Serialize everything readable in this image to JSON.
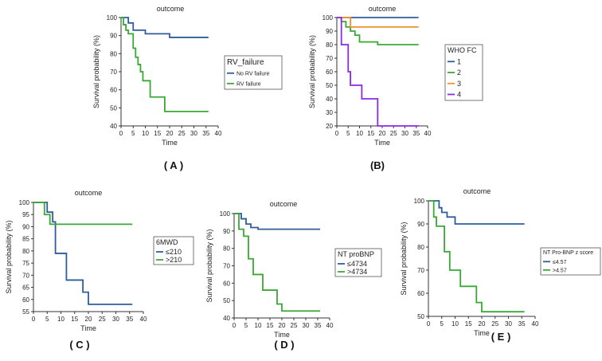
{
  "colors": {
    "blue": "#2f5d9b",
    "green": "#39a935",
    "orange": "#f0922c",
    "purple": "#8a2be2",
    "axis": "#333333"
  },
  "chart_data": [
    {
      "id": "A",
      "type": "line",
      "panel_label": "( A )",
      "title": "outcome",
      "xlabel": "Time",
      "ylabel": "Survival probability (%)",
      "xlim": [
        0,
        40
      ],
      "ylim": [
        40,
        100
      ],
      "xticks": [
        "0",
        "5",
        "10",
        "15",
        "20",
        "25",
        "30",
        "35",
        "40"
      ],
      "yticks": [
        "40",
        "50",
        "60",
        "70",
        "80",
        "90",
        "100"
      ],
      "legend_title": "RV_failure",
      "legend_position": "right",
      "series": [
        {
          "name": "No RV failure",
          "color": "blue",
          "x": [
            0,
            3,
            5,
            10,
            20,
            36
          ],
          "y": [
            100,
            97,
            93,
            91,
            89,
            89
          ]
        },
        {
          "name": "RV failure",
          "color": "green",
          "x": [
            0,
            1,
            2,
            3,
            5,
            6,
            7,
            8,
            9,
            12,
            18,
            36
          ],
          "y": [
            100,
            96,
            93,
            91,
            83,
            78,
            74,
            70,
            65,
            56,
            48,
            48
          ]
        }
      ]
    },
    {
      "id": "B",
      "type": "line",
      "panel_label": "(B)",
      "title": "outcome",
      "xlabel": "Time",
      "ylabel": "Survival probability (%)",
      "xlim": [
        0,
        40
      ],
      "ylim": [
        20,
        100
      ],
      "xticks": [
        "0",
        "5",
        "10",
        "15",
        "20",
        "25",
        "30",
        "35",
        "40"
      ],
      "yticks": [
        "20",
        "30",
        "40",
        "50",
        "60",
        "70",
        "80",
        "90",
        "100"
      ],
      "legend_title": "WHO FC",
      "legend_position": "right",
      "series": [
        {
          "name": "1",
          "color": "blue",
          "x": [
            0,
            36
          ],
          "y": [
            100,
            100
          ]
        },
        {
          "name": "2",
          "color": "green",
          "x": [
            0,
            2,
            4,
            6,
            8,
            10,
            18,
            36
          ],
          "y": [
            100,
            97,
            93,
            90,
            87,
            82,
            80,
            80
          ]
        },
        {
          "name": "3",
          "color": "orange",
          "x": [
            0,
            6,
            36
          ],
          "y": [
            100,
            93,
            93
          ]
        },
        {
          "name": "4",
          "color": "purple",
          "x": [
            0,
            2,
            5,
            6,
            11,
            18,
            36
          ],
          "y": [
            100,
            80,
            60,
            50,
            40,
            20,
            20
          ]
        }
      ]
    },
    {
      "id": "C",
      "type": "line",
      "panel_label": "( C )",
      "title": "outcome",
      "xlabel": "Time",
      "ylabel": "Survival probability (%)",
      "xlim": [
        0,
        40
      ],
      "ylim": [
        55,
        100
      ],
      "xticks": [
        "0",
        "5",
        "10",
        "15",
        "20",
        "25",
        "30",
        "35",
        "40"
      ],
      "yticks": [
        "55",
        "60",
        "65",
        "70",
        "75",
        "80",
        "85",
        "90",
        "95",
        "100"
      ],
      "legend_title": "6MWD",
      "legend_position": "right",
      "series": [
        {
          "name": "≤210",
          "color": "blue",
          "x": [
            0,
            5,
            7,
            8,
            12,
            18,
            20,
            36
          ],
          "y": [
            100,
            96,
            92,
            79,
            68,
            63,
            58,
            58
          ]
        },
        {
          "name": ">210",
          "color": "green",
          "x": [
            0,
            4,
            6,
            36
          ],
          "y": [
            100,
            95,
            91,
            91
          ]
        }
      ]
    },
    {
      "id": "D",
      "type": "line",
      "panel_label": "( D )",
      "title": "outcome",
      "xlabel": "Time",
      "ylabel": "Survival probability (%)",
      "xlim": [
        0,
        40
      ],
      "ylim": [
        40,
        100
      ],
      "xticks": [
        "0",
        "5",
        "10",
        "15",
        "20",
        "25",
        "30",
        "35",
        "40"
      ],
      "yticks": [
        "40",
        "50",
        "60",
        "70",
        "80",
        "90",
        "100"
      ],
      "legend_title": "NT proBNP",
      "legend_position": "right",
      "series": [
        {
          "name": "≤4734",
          "color": "blue",
          "x": [
            0,
            3,
            5,
            7,
            10,
            36
          ],
          "y": [
            100,
            97,
            94,
            92,
            91,
            91
          ]
        },
        {
          "name": ">4734",
          "color": "green",
          "x": [
            0,
            2,
            4,
            6,
            8,
            12,
            18,
            20,
            36
          ],
          "y": [
            100,
            91,
            87,
            74,
            65,
            56,
            48,
            44,
            44
          ]
        }
      ]
    },
    {
      "id": "E",
      "type": "line",
      "panel_label": "( E )",
      "title": "outcome",
      "xlabel": "Time",
      "ylabel": "Survival probability (%)",
      "xlim": [
        0,
        40
      ],
      "ylim": [
        50,
        100
      ],
      "xticks": [
        "0",
        "5",
        "10",
        "15",
        "20",
        "25",
        "30",
        "35",
        "40"
      ],
      "yticks": [
        "50",
        "60",
        "70",
        "80",
        "90",
        "100"
      ],
      "legend_title": "NT Pro-BNP z score",
      "legend_position": "right",
      "series": [
        {
          "name": "≤4.57",
          "color": "blue",
          "x": [
            0,
            4,
            5,
            7,
            10,
            36
          ],
          "y": [
            100,
            97,
            95,
            93,
            90,
            90
          ]
        },
        {
          "name": ">4.57",
          "color": "green",
          "x": [
            0,
            2,
            3,
            4,
            6,
            8,
            12,
            18,
            20,
            36
          ],
          "y": [
            100,
            93,
            89,
            89,
            78,
            70,
            63,
            56,
            52,
            52
          ]
        }
      ]
    }
  ]
}
